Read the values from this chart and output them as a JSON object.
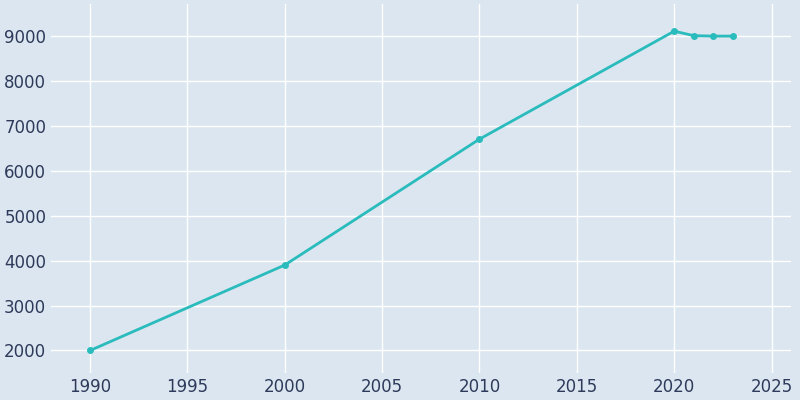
{
  "years": [
    1990,
    2000,
    2010,
    2020,
    2021,
    2022,
    2023
  ],
  "population": [
    2000,
    3900,
    6700,
    9100,
    9000,
    8990,
    8990
  ],
  "line_color": "#2abcbc",
  "marker": "o",
  "marker_size": 4,
  "line_width": 2,
  "background_color": "#dce6f0",
  "grid_color": "#ffffff",
  "xlim": [
    1988,
    2026
  ],
  "ylim": [
    1500,
    9700
  ],
  "xticks": [
    1990,
    1995,
    2000,
    2005,
    2010,
    2015,
    2020,
    2025
  ],
  "yticks": [
    2000,
    3000,
    4000,
    5000,
    6000,
    7000,
    8000,
    9000
  ],
  "tick_label_color": "#2d3a5a",
  "tick_fontsize": 12
}
